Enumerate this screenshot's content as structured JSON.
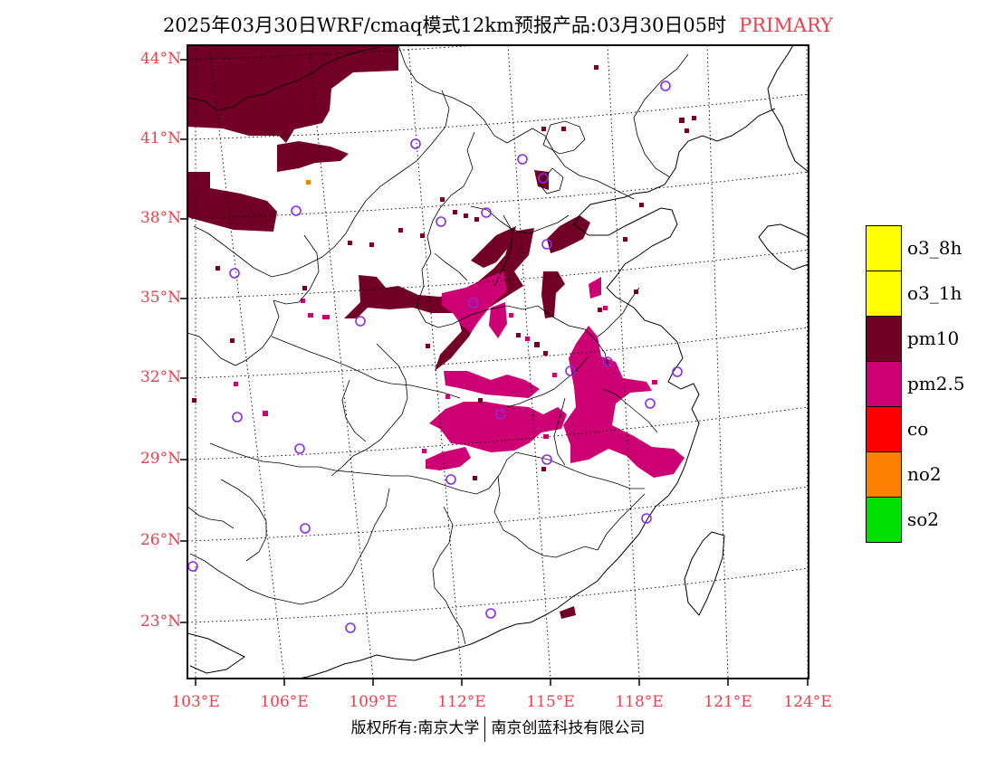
{
  "title": {
    "main": "2025年03月30日WRF/cmaq模式12km预报产品:03月30日05时",
    "pollutant": "PRIMARY"
  },
  "map": {
    "lat_labels": [
      "44°N",
      "41°N",
      "38°N",
      "35°N",
      "32°N",
      "29°N",
      "26°N",
      "23°N"
    ],
    "lon_labels": [
      "103°E",
      "106°E",
      "109°E",
      "112°E",
      "115°E",
      "118°E",
      "121°E",
      "124°E"
    ],
    "colors": {
      "pm10": "#720026",
      "pm25": "#cc0073",
      "no2": "#ff7f00",
      "station": "#8a2be2",
      "label": "#e8414d"
    }
  },
  "legend": [
    {
      "label": "o3_8h",
      "color": "#ffff00"
    },
    {
      "label": "o3_1h",
      "color": "#ffff00"
    },
    {
      "label": "pm10",
      "color": "#720026"
    },
    {
      "label": "pm2.5",
      "color": "#cc0073"
    },
    {
      "label": "co",
      "color": "#ff0000"
    },
    {
      "label": "no2",
      "color": "#ff7f00"
    },
    {
      "label": "so2",
      "color": "#00e000"
    }
  ],
  "footer": {
    "left": "版权所有:南京大学",
    "right": "南京创蓝科技有限公司"
  }
}
